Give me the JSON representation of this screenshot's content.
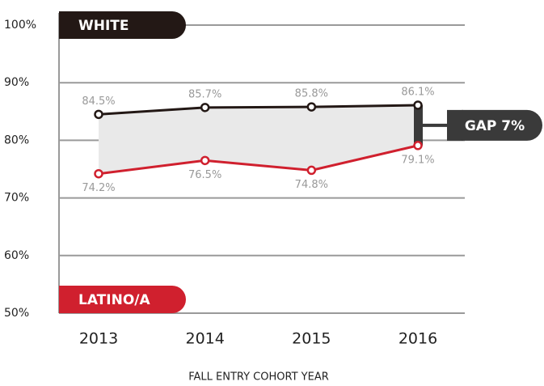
{
  "chart_data": {
    "type": "line",
    "categories": [
      "2013",
      "2014",
      "2015",
      "2016"
    ],
    "series": [
      {
        "name": "WHITE",
        "color": "#231815",
        "values": [
          84.5,
          85.7,
          85.8,
          86.1
        ],
        "value_labels": [
          "84.5%",
          "85.7%",
          "85.8%",
          "86.1%"
        ]
      },
      {
        "name": "LATINO/A",
        "color": "#d0202e",
        "values": [
          74.2,
          76.5,
          74.8,
          79.1
        ],
        "value_labels": [
          "74.2%",
          "76.5%",
          "74.8%",
          "79.1%"
        ]
      }
    ],
    "ylim": [
      50,
      100
    ],
    "yticks": [
      {
        "value": 50,
        "label": "50%"
      },
      {
        "value": 60,
        "label": "60%"
      },
      {
        "value": 70,
        "label": "70%"
      },
      {
        "value": 80,
        "label": "80%"
      },
      {
        "value": 90,
        "label": "90%"
      },
      {
        "value": 100,
        "label": "100%"
      }
    ],
    "grid": true,
    "annotation": "GAP 7%",
    "xlabel": "FALL ENTRY COHORT YEAR"
  }
}
